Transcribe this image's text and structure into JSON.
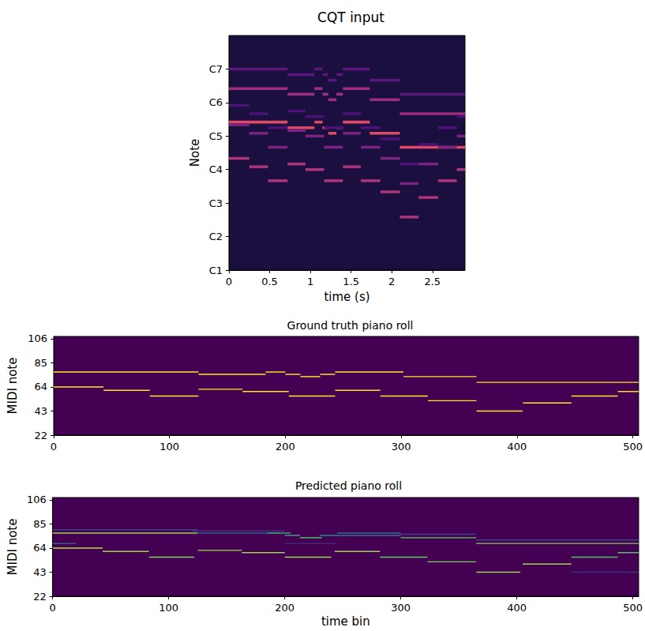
{
  "chart_data": [
    {
      "type": "heatmap",
      "title": "CQT input",
      "xlabel": "time (s)",
      "ylabel": "Note",
      "xlim": [
        0,
        2.9
      ],
      "xticks": [
        0,
        0.5,
        1,
        1.5,
        2,
        2.5
      ],
      "ylim": [
        24,
        108
      ],
      "yticks": [
        {
          "value": 24,
          "label": "C1"
        },
        {
          "value": 36,
          "label": "C2"
        },
        {
          "value": 48,
          "label": "C3"
        },
        {
          "value": 60,
          "label": "C4"
        },
        {
          "value": 72,
          "label": "C5"
        },
        {
          "value": 84,
          "label": "C6"
        },
        {
          "value": 96,
          "label": "C7"
        }
      ],
      "color_range": [
        0,
        1
      ],
      "floor": 0.12,
      "cells": [
        [
          0,
          0.72,
          77,
          0.75
        ],
        [
          0.72,
          1.05,
          75,
          0.75
        ],
        [
          1.05,
          1.15,
          77,
          0.75
        ],
        [
          1.15,
          1.22,
          75,
          0.75
        ],
        [
          1.22,
          1.32,
          73,
          0.75
        ],
        [
          1.32,
          1.4,
          75,
          0.75
        ],
        [
          1.4,
          1.73,
          77,
          0.75
        ],
        [
          1.73,
          2.1,
          73,
          0.75
        ],
        [
          2.1,
          2.9,
          68,
          0.75
        ],
        [
          0,
          0.72,
          89,
          0.55
        ],
        [
          0.72,
          1.05,
          87,
          0.55
        ],
        [
          1.05,
          1.15,
          89,
          0.55
        ],
        [
          1.15,
          1.22,
          87,
          0.55
        ],
        [
          1.22,
          1.32,
          85,
          0.55
        ],
        [
          1.32,
          1.4,
          87,
          0.55
        ],
        [
          1.4,
          1.73,
          89,
          0.55
        ],
        [
          1.73,
          2.1,
          85,
          0.55
        ],
        [
          2.1,
          2.9,
          80,
          0.55
        ],
        [
          0,
          0.72,
          96,
          0.35
        ],
        [
          0.72,
          1.05,
          94,
          0.35
        ],
        [
          1.05,
          1.15,
          96,
          0.35
        ],
        [
          1.15,
          1.22,
          94,
          0.35
        ],
        [
          1.22,
          1.32,
          92,
          0.35
        ],
        [
          1.32,
          1.4,
          94,
          0.35
        ],
        [
          1.4,
          1.73,
          96,
          0.35
        ],
        [
          1.73,
          2.1,
          92,
          0.35
        ],
        [
          2.1,
          2.9,
          87,
          0.35
        ],
        [
          0,
          0.25,
          64,
          0.6
        ],
        [
          0.25,
          0.48,
          61,
          0.6
        ],
        [
          0.48,
          0.72,
          56,
          0.6
        ],
        [
          0.72,
          0.94,
          62,
          0.6
        ],
        [
          0.94,
          1.17,
          60,
          0.6
        ],
        [
          1.17,
          1.4,
          56,
          0.6
        ],
        [
          1.4,
          1.62,
          61,
          0.6
        ],
        [
          1.62,
          1.86,
          56,
          0.6
        ],
        [
          1.86,
          2.1,
          52,
          0.6
        ],
        [
          2.1,
          2.33,
          43,
          0.6
        ],
        [
          2.33,
          2.57,
          50,
          0.6
        ],
        [
          2.57,
          2.8,
          56,
          0.6
        ],
        [
          2.8,
          2.9,
          60,
          0.6
        ],
        [
          0,
          0.25,
          76,
          0.45
        ],
        [
          0.25,
          0.48,
          73,
          0.45
        ],
        [
          0.48,
          0.72,
          68,
          0.45
        ],
        [
          0.72,
          0.94,
          74,
          0.45
        ],
        [
          0.94,
          1.17,
          72,
          0.45
        ],
        [
          1.17,
          1.4,
          68,
          0.45
        ],
        [
          1.4,
          1.62,
          73,
          0.45
        ],
        [
          1.62,
          1.86,
          68,
          0.45
        ],
        [
          1.86,
          2.1,
          64,
          0.45
        ],
        [
          2.1,
          2.33,
          55,
          0.45
        ],
        [
          2.33,
          2.57,
          62,
          0.45
        ],
        [
          2.57,
          2.8,
          68,
          0.45
        ],
        [
          2.8,
          2.9,
          72,
          0.45
        ],
        [
          0,
          0.25,
          83,
          0.3
        ],
        [
          0.25,
          0.48,
          80,
          0.3
        ],
        [
          0.48,
          0.72,
          75,
          0.3
        ],
        [
          0.72,
          0.94,
          81,
          0.3
        ],
        [
          0.94,
          1.17,
          79,
          0.3
        ],
        [
          1.17,
          1.4,
          75,
          0.3
        ],
        [
          1.4,
          1.62,
          80,
          0.3
        ],
        [
          1.62,
          1.86,
          75,
          0.3
        ],
        [
          1.86,
          2.1,
          71,
          0.3
        ],
        [
          2.1,
          2.33,
          62,
          0.3
        ],
        [
          2.33,
          2.57,
          69,
          0.3
        ],
        [
          2.57,
          2.8,
          75,
          0.3
        ],
        [
          2.8,
          2.9,
          79,
          0.3
        ]
      ]
    },
    {
      "type": "heatmap",
      "title": "Ground truth piano roll",
      "ylabel": "MIDI note",
      "xlim": [
        0,
        505
      ],
      "xticks": [
        0,
        100,
        200,
        300,
        400,
        500
      ],
      "ylim": [
        22,
        108
      ],
      "yticks": [
        22,
        43,
        64,
        85,
        106
      ],
      "color_range": [
        0,
        1
      ],
      "floor": 0,
      "cells": [
        [
          0,
          125,
          77,
          1
        ],
        [
          125,
          183,
          75,
          1
        ],
        [
          183,
          200,
          77,
          1
        ],
        [
          200,
          213,
          75,
          1
        ],
        [
          213,
          230,
          73,
          1
        ],
        [
          230,
          243,
          75,
          1
        ],
        [
          243,
          302,
          77,
          1
        ],
        [
          302,
          365,
          73,
          1
        ],
        [
          365,
          505,
          68,
          1
        ],
        [
          0,
          43,
          64,
          1
        ],
        [
          43,
          83,
          61,
          1
        ],
        [
          83,
          125,
          56,
          1
        ],
        [
          125,
          163,
          62,
          1
        ],
        [
          163,
          203,
          60,
          1
        ],
        [
          203,
          243,
          56,
          1
        ],
        [
          243,
          282,
          61,
          1
        ],
        [
          282,
          323,
          56,
          1
        ],
        [
          323,
          365,
          52,
          1
        ],
        [
          365,
          405,
          43,
          1
        ],
        [
          405,
          447,
          50,
          1
        ],
        [
          447,
          487,
          56,
          1
        ],
        [
          487,
          505,
          60,
          1
        ]
      ]
    },
    {
      "type": "heatmap",
      "title": "Predicted piano roll",
      "xlabel": "time bin",
      "ylabel": "MIDI note",
      "xlim": [
        0,
        505
      ],
      "xticks": [
        0,
        100,
        200,
        300,
        400,
        500
      ],
      "ylim": [
        22,
        108
      ],
      "yticks": [
        22,
        43,
        64,
        85,
        106
      ],
      "color_range": [
        0,
        1
      ],
      "floor": 0,
      "cells": [
        [
          0,
          125,
          80,
          0.2
        ],
        [
          120,
          200,
          79,
          0.15
        ],
        [
          365,
          505,
          71,
          0.2
        ],
        [
          0,
          20,
          68,
          0.3
        ],
        [
          447,
          505,
          43,
          0.15
        ],
        [
          300,
          365,
          76,
          0.2
        ],
        [
          200,
          245,
          68,
          0.15
        ],
        [
          0,
          125,
          77,
          0.85
        ],
        [
          125,
          195,
          77,
          0.3
        ],
        [
          185,
          205,
          77,
          0.6
        ],
        [
          200,
          213,
          75,
          0.6
        ],
        [
          213,
          232,
          73,
          0.7
        ],
        [
          230,
          245,
          75,
          0.5
        ],
        [
          245,
          300,
          77,
          0.35
        ],
        [
          245,
          300,
          75,
          0.4
        ],
        [
          300,
          365,
          73,
          0.75
        ],
        [
          365,
          505,
          68,
          0.8
        ],
        [
          0,
          43,
          64,
          0.9
        ],
        [
          43,
          83,
          61,
          0.85
        ],
        [
          83,
          122,
          56,
          0.8
        ],
        [
          125,
          163,
          62,
          0.85
        ],
        [
          163,
          200,
          60,
          0.85
        ],
        [
          200,
          240,
          56,
          0.85
        ],
        [
          243,
          282,
          61,
          0.85
        ],
        [
          282,
          323,
          56,
          0.75
        ],
        [
          323,
          365,
          52,
          0.8
        ],
        [
          365,
          403,
          43,
          0.85
        ],
        [
          405,
          447,
          50,
          0.85
        ],
        [
          447,
          487,
          56,
          0.7
        ],
        [
          487,
          505,
          60,
          0.7
        ]
      ]
    }
  ]
}
